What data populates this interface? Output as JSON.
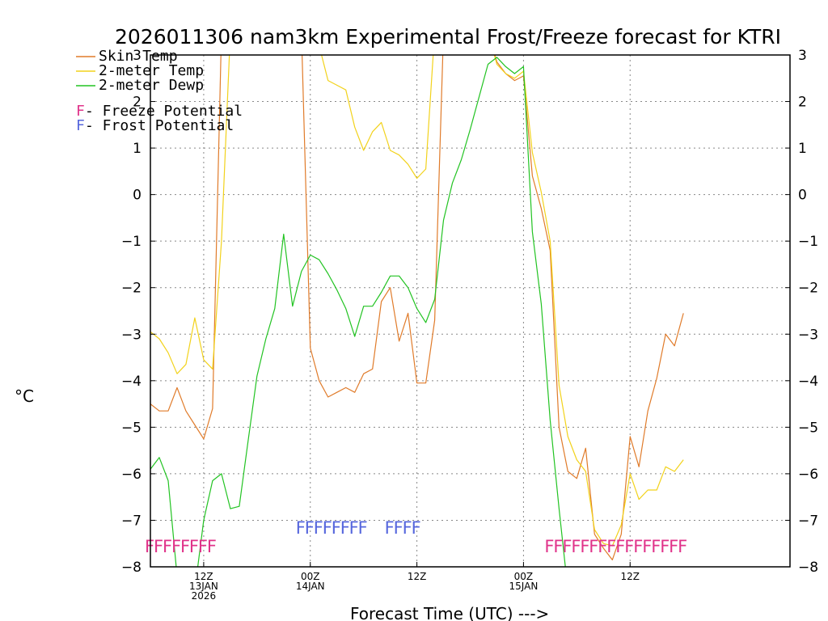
{
  "chart_data": {
    "type": "line",
    "title": "2026011306 nam3km Experimental Frost/Freeze forecast for KTRI",
    "ylabel": "°C",
    "xlabel": "Forecast Time (UTC) --->",
    "ylim": [
      -8,
      3
    ],
    "yticks": [
      3,
      2,
      1,
      0,
      -1,
      -2,
      -3,
      -4,
      -5,
      -6,
      -7,
      -8
    ],
    "x_hours": [
      0,
      72
    ],
    "xticks": [
      {
        "hour": 6,
        "lines": [
          "12Z",
          "13JAN",
          "2026"
        ]
      },
      {
        "hour": 18,
        "lines": [
          "00Z",
          "14JAN"
        ]
      },
      {
        "hour": 30,
        "lines": [
          "12Z"
        ]
      },
      {
        "hour": 42,
        "lines": [
          "00Z",
          "15JAN"
        ]
      },
      {
        "hour": 54,
        "lines": [
          "12Z"
        ]
      }
    ],
    "colors": {
      "skin": "#e07b2a",
      "temp": "#f2d21b",
      "dewp": "#22c322",
      "freeze": "#e0338a",
      "frost": "#5566dd",
      "grid": "#888888"
    },
    "series": [
      {
        "name": "Skin Temp",
        "key": "skin",
        "x": [
          0,
          1,
          2,
          3,
          4,
          5,
          6,
          7,
          8,
          9,
          10,
          11,
          12,
          13,
          14,
          15,
          16,
          17,
          18,
          19,
          20,
          21,
          22,
          23,
          24,
          25,
          26,
          27,
          28,
          29,
          30,
          31,
          32,
          33,
          34,
          35,
          36,
          37,
          38,
          39,
          40,
          41,
          42,
          43,
          44,
          45,
          46,
          47,
          48,
          49,
          50,
          51,
          52,
          53,
          54,
          55,
          56,
          57,
          58,
          59,
          60
        ],
        "values": [
          -4.5,
          -4.65,
          -4.65,
          -4.15,
          -4.65,
          -4.95,
          -5.25,
          -4.6,
          3.5,
          3.5,
          3.5,
          3.5,
          3.5,
          3.5,
          3.5,
          3.5,
          3.5,
          3.5,
          -3.3,
          -4.0,
          -4.35,
          -4.25,
          -4.15,
          -4.25,
          -3.85,
          -3.75,
          -2.3,
          -2.0,
          -3.15,
          -2.55,
          -4.05,
          -4.05,
          -2.7,
          3.5,
          3.5,
          3.5,
          3.5,
          3.5,
          3.5,
          2.85,
          2.6,
          2.45,
          2.55,
          0.4,
          -0.3,
          -1.2,
          -5.0,
          -5.95,
          -6.1,
          -5.45,
          -7.3,
          -7.6,
          -7.85,
          -7.3,
          -5.2,
          -5.85,
          -4.65,
          -3.95,
          -3.0,
          -3.25,
          -2.55
        ]
      },
      {
        "name": "2-meter Temp",
        "key": "temp",
        "x": [
          0,
          1,
          2,
          3,
          4,
          5,
          6,
          7,
          8,
          9,
          10,
          11,
          12,
          13,
          14,
          15,
          16,
          17,
          18,
          19,
          20,
          21,
          22,
          23,
          24,
          25,
          26,
          27,
          28,
          29,
          30,
          31,
          32,
          33,
          34,
          35,
          36,
          37,
          38,
          39,
          40,
          41,
          42,
          43,
          44,
          45,
          46,
          47,
          48,
          49,
          50,
          51,
          52,
          53,
          54,
          55,
          56,
          57,
          58,
          59,
          60
        ],
        "values": [
          -2.95,
          -3.1,
          -3.4,
          -3.85,
          -3.65,
          -2.65,
          -3.55,
          -3.75,
          -1.0,
          3.5,
          3.5,
          3.5,
          3.5,
          3.5,
          3.5,
          3.5,
          3.5,
          3.5,
          3.5,
          3.2,
          2.45,
          2.35,
          2.25,
          1.45,
          0.95,
          1.35,
          1.55,
          0.95,
          0.85,
          0.65,
          0.35,
          0.55,
          3.5,
          3.5,
          3.5,
          3.5,
          3.5,
          3.5,
          3.5,
          2.8,
          2.6,
          2.5,
          2.65,
          0.9,
          0.05,
          -1.0,
          -4.1,
          -5.2,
          -5.7,
          -5.95,
          -7.2,
          -7.5,
          -7.55,
          -7.1,
          -6.0,
          -6.55,
          -6.35,
          -6.35,
          -5.85,
          -5.95,
          -5.7
        ]
      },
      {
        "name": "2-meter Dewp",
        "key": "dewp",
        "x": [
          0,
          1,
          2,
          3,
          4,
          5,
          6,
          7,
          8,
          9,
          10,
          11,
          12,
          13,
          14,
          15,
          16,
          17,
          18,
          19,
          20,
          21,
          22,
          23,
          24,
          25,
          26,
          27,
          28,
          29,
          30,
          31,
          32,
          33,
          34,
          35,
          36,
          37,
          38,
          39,
          40,
          41,
          42,
          43,
          44,
          45,
          46,
          47,
          48,
          49,
          50,
          51,
          52,
          53,
          54,
          55,
          56,
          57,
          58,
          59,
          60
        ],
        "values": [
          -5.9,
          -5.65,
          -6.15,
          -8.2,
          -8.5,
          -8.5,
          -7.0,
          -6.15,
          -6.0,
          -6.75,
          -6.7,
          -5.3,
          -3.9,
          -3.1,
          -2.45,
          -0.85,
          -2.4,
          -1.65,
          -1.3,
          -1.4,
          -1.7,
          -2.05,
          -2.45,
          -3.05,
          -2.4,
          -2.4,
          -2.1,
          -1.75,
          -1.75,
          -2.0,
          -2.45,
          -2.75,
          -2.25,
          -0.55,
          0.25,
          0.75,
          1.4,
          2.1,
          2.8,
          2.95,
          2.75,
          2.6,
          2.75,
          -0.8,
          -2.35,
          -4.85,
          -6.75,
          -8.5,
          -8.5,
          -8.5,
          -8.5,
          -8.5,
          -8.5,
          -8.5,
          -8.5,
          -8.5,
          -8.5,
          -8.5,
          -8.5,
          -8.5,
          -8.5
        ]
      }
    ],
    "flags": [
      {
        "label": "F",
        "key": "freeze",
        "level": -7.55,
        "hours": [
          0,
          1,
          2,
          3,
          4,
          5,
          6,
          7
        ]
      },
      {
        "label": "F",
        "key": "frost",
        "level": -7.15,
        "hours": [
          17,
          18,
          19,
          20,
          21,
          22,
          23,
          24
        ]
      },
      {
        "label": "F",
        "key": "frost",
        "level": -7.15,
        "hours": [
          27,
          28,
          29,
          30
        ]
      },
      {
        "label": "F",
        "key": "freeze",
        "level": -7.55,
        "hours": [
          45,
          46,
          47,
          48,
          49,
          50,
          51,
          52,
          53,
          54,
          55,
          56,
          57,
          58,
          59,
          60
        ]
      }
    ]
  },
  "legend": {
    "items": [
      {
        "label": "Skin Temp",
        "key": "skin"
      },
      {
        "label": "2-meter Temp",
        "key": "temp"
      },
      {
        "label": "2-meter Dewp",
        "key": "dewp"
      }
    ],
    "flag_items": [
      {
        "letter": "F",
        "text": " - Freeze Potential",
        "key": "freeze"
      },
      {
        "letter": "F",
        "text": " - Frost Potential",
        "key": "frost"
      }
    ]
  }
}
